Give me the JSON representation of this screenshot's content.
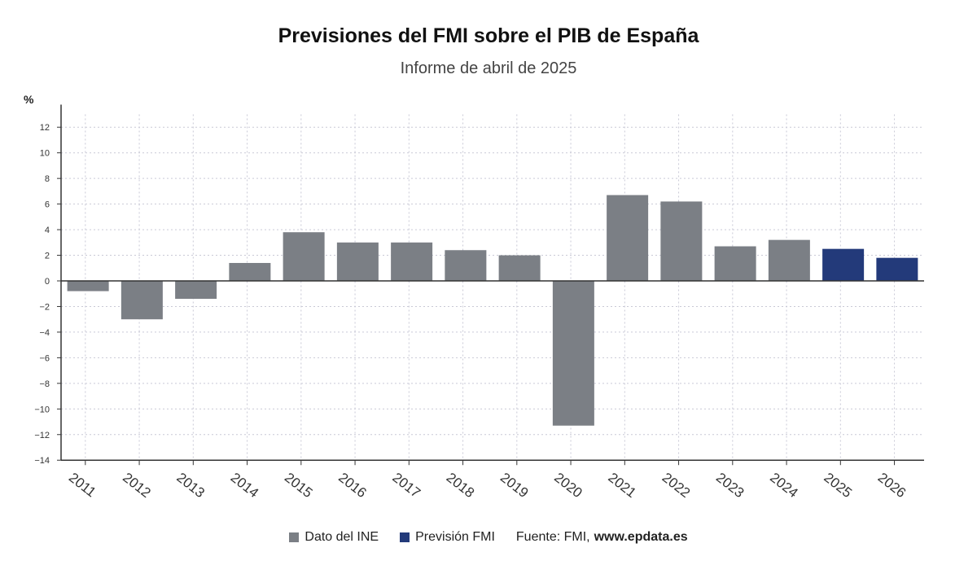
{
  "chart_data": {
    "type": "bar",
    "title": "Previsiones del FMI sobre el PIB de España",
    "subtitle": "Informe de abril de 2025",
    "ylabel": "%",
    "categories": [
      "2011",
      "2012",
      "2013",
      "2014",
      "2015",
      "2016",
      "2017",
      "2018",
      "2019",
      "2020",
      "2021",
      "2022",
      "2023",
      "2024",
      "2025",
      "2026"
    ],
    "values": [
      -0.8,
      -3.0,
      -1.4,
      1.4,
      3.8,
      3.0,
      3.0,
      2.4,
      2.0,
      -11.3,
      6.7,
      6.2,
      2.7,
      3.2,
      2.5,
      1.8
    ],
    "series_by_point": [
      "Dato del INE",
      "Dato del INE",
      "Dato del INE",
      "Dato del INE",
      "Dato del INE",
      "Dato del INE",
      "Dato del INE",
      "Dato del INE",
      "Dato del INE",
      "Dato del INE",
      "Dato del INE",
      "Dato del INE",
      "Dato del INE",
      "Dato del INE",
      "Previsión FMI",
      "Previsión FMI"
    ],
    "ylim": [
      -14,
      13
    ],
    "yticks": [
      12,
      10,
      8,
      6,
      4,
      2,
      0,
      -2,
      -4,
      -6,
      -8,
      -10,
      -12,
      -14
    ],
    "ytick_labels": [
      "12",
      "10",
      "8",
      "6",
      "4",
      "2",
      "0",
      "−2",
      "−4",
      "−6",
      "−8",
      "−10",
      "−12",
      "−14"
    ],
    "grid": true,
    "legend": [
      {
        "name": "Dato del INE",
        "color": "#7b7f85"
      },
      {
        "name": "Previsión FMI",
        "color": "#233a7a"
      }
    ],
    "legend_position": "bottom",
    "source_label": "Fuente: FMI,",
    "source_web": "www.epdata.es"
  }
}
